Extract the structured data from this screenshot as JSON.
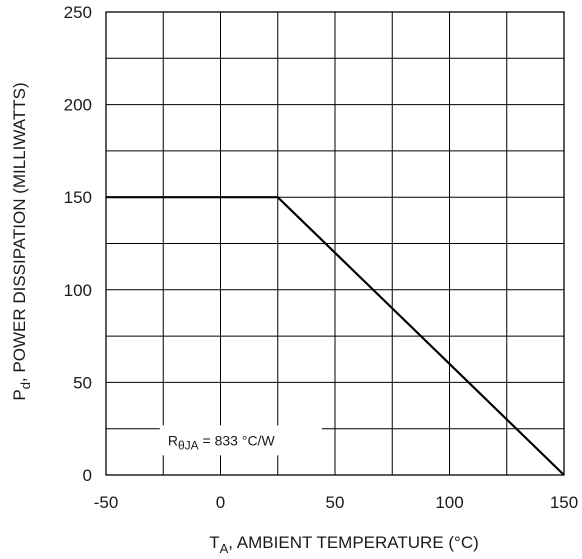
{
  "chart_data": {
    "type": "line",
    "xlabel": {
      "main": "T",
      "sub": "A",
      "rest": ", AMBIENT TEMPERATURE (°C)"
    },
    "ylabel": {
      "main": "P",
      "sub": "d",
      "rest": ", POWER DISSIPATION (MILLIWATTS)"
    },
    "xlim": [
      -50,
      150
    ],
    "ylim": [
      0,
      250
    ],
    "xticks": [
      -50,
      0,
      50,
      100,
      150
    ],
    "yticks": [
      0,
      50,
      100,
      150,
      200,
      250
    ],
    "x_minor_step": 25,
    "y_minor_step": 25,
    "grid": true,
    "series": [
      {
        "x": [
          -50,
          25,
          150
        ],
        "y": [
          150,
          150,
          0
        ]
      }
    ],
    "annotation": {
      "symbol": "R",
      "sub": "θJA",
      "rest": " = 833 °C/W"
    }
  }
}
